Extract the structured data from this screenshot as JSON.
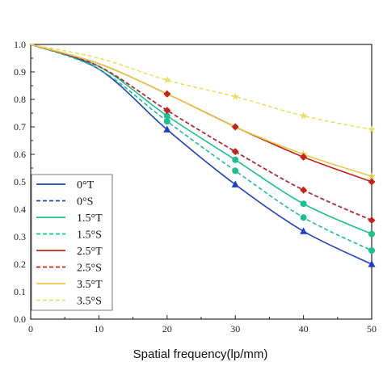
{
  "chart_data": {
    "type": "line",
    "title": "",
    "xlabel": "Spatial frequency(lp/mm)",
    "ylabel": "",
    "xlim": [
      0,
      50
    ],
    "ylim": [
      0.0,
      1.0
    ],
    "x_ticks": [
      "0",
      "10",
      "20",
      "30",
      "40",
      "50"
    ],
    "y_ticks": [
      "0.0",
      "0.1",
      "0.2",
      "0.3",
      "0.4",
      "0.5",
      "0.6",
      "0.7",
      "0.8",
      "0.9",
      "1.0"
    ],
    "grid": false,
    "legend_position": "bottom-left",
    "x": [
      0,
      10,
      20,
      30,
      40,
      50
    ],
    "series": [
      {
        "name": "0°T",
        "color": "#1f3fbf",
        "dash": "solid",
        "marker": "triangle",
        "values": [
          1.0,
          0.91,
          0.69,
          0.49,
          0.32,
          0.2
        ]
      },
      {
        "name": "0°S",
        "color": "#1f3fbf",
        "dash": "dashed",
        "marker": "none",
        "values": [
          1.0,
          0.92,
          0.76,
          0.61,
          0.47,
          0.36
        ]
      },
      {
        "name": "1.5°T",
        "color": "#1fbf8f",
        "dash": "solid",
        "marker": "circle",
        "values": [
          1.0,
          0.92,
          0.74,
          0.58,
          0.42,
          0.31
        ]
      },
      {
        "name": "1.5°S",
        "color": "#1fbf8f",
        "dash": "dashed",
        "marker": "circle",
        "values": [
          1.0,
          0.91,
          0.72,
          0.54,
          0.37,
          0.25
        ]
      },
      {
        "name": "2.5°T",
        "color": "#c0241c",
        "dash": "solid",
        "marker": "none",
        "values": [
          1.0,
          0.93,
          0.82,
          0.7,
          0.59,
          0.5
        ]
      },
      {
        "name": "2.5°S",
        "color": "#c0241c",
        "dash": "dashed",
        "marker": "diamond",
        "values": [
          1.0,
          0.92,
          0.76,
          0.61,
          0.47,
          0.36
        ]
      },
      {
        "name": "3.5°T",
        "color": "#e8c84a",
        "dash": "solid",
        "marker": "star",
        "values": [
          1.0,
          0.93,
          0.82,
          0.7,
          0.6,
          0.52
        ]
      },
      {
        "name": "3.5°S",
        "color": "#e8e06a",
        "dash": "dashed",
        "marker": "star",
        "values": [
          1.0,
          0.95,
          0.87,
          0.81,
          0.74,
          0.69
        ]
      }
    ],
    "extra_markers": [
      {
        "series": "2.5°T",
        "marker": "diamond",
        "x": [
          20,
          30,
          40,
          50
        ],
        "values": [
          0.82,
          0.7,
          0.59,
          0.5
        ]
      }
    ]
  }
}
